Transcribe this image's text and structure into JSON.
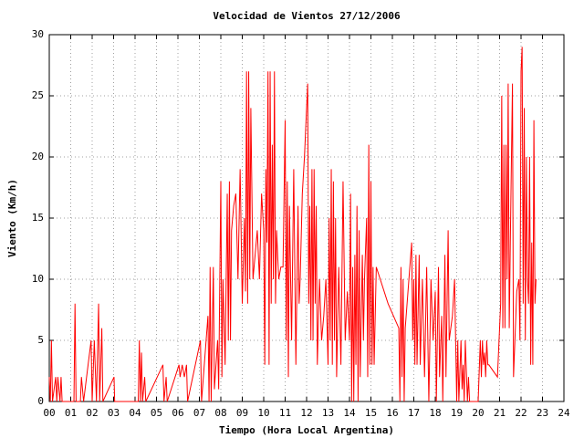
{
  "chart_data": {
    "type": "line",
    "title": "Velocidad de Vientos 27/12/2006",
    "xlabel": "Tiempo (Hora Local Argentina)",
    "ylabel": "Viento (Km/h)",
    "xlim": [
      0,
      24
    ],
    "ylim": [
      0,
      30
    ],
    "xticks": [
      {
        "value": 0,
        "label": "00"
      },
      {
        "value": 1,
        "label": "01"
      },
      {
        "value": 2,
        "label": "02"
      },
      {
        "value": 3,
        "label": "03"
      },
      {
        "value": 4,
        "label": "04"
      },
      {
        "value": 5,
        "label": "05"
      },
      {
        "value": 6,
        "label": "06"
      },
      {
        "value": 7,
        "label": "07"
      },
      {
        "value": 8,
        "label": "08"
      },
      {
        "value": 9,
        "label": "09"
      },
      10,
      11,
      12,
      13,
      14,
      15,
      16,
      17,
      18,
      19,
      20,
      21,
      22,
      23,
      24
    ],
    "yticks": [
      0,
      5,
      10,
      15,
      20,
      25,
      30
    ],
    "grid": true,
    "x": [
      0,
      0.05,
      0.1,
      0.15,
      0.3,
      0.35,
      0.4,
      0.5,
      0.55,
      0.6,
      1.15,
      1.2,
      1.25,
      1.45,
      1.5,
      1.6,
      1.95,
      2.0,
      2.1,
      2.2,
      2.3,
      2.35,
      2.45,
      2.5,
      3.02,
      3.05,
      4.15,
      4.2,
      4.25,
      4.3,
      4.35,
      4.45,
      4.5,
      5.3,
      5.35,
      5.45,
      5.5,
      6.05,
      6.1,
      6.2,
      6.3,
      6.4,
      6.45,
      7.05,
      7.1,
      7.4,
      7.45,
      7.5,
      7.55,
      7.65,
      7.7,
      7.85,
      7.9,
      8.0,
      8.05,
      8.1,
      8.2,
      8.3,
      8.35,
      8.4,
      8.45,
      8.5,
      8.6,
      8.7,
      8.8,
      8.9,
      9.0,
      9.1,
      9.15,
      9.2,
      9.25,
      9.3,
      9.35,
      9.4,
      9.5,
      9.6,
      9.7,
      9.8,
      9.9,
      10.0,
      10.05,
      10.1,
      10.15,
      10.2,
      10.25,
      10.3,
      10.35,
      10.4,
      10.45,
      10.5,
      10.55,
      10.6,
      10.7,
      10.8,
      10.9,
      11.0,
      11.05,
      11.1,
      11.15,
      11.2,
      11.3,
      11.4,
      11.5,
      11.6,
      11.65,
      11.7,
      11.8,
      11.9,
      12.0,
      12.05,
      12.1,
      12.15,
      12.2,
      12.25,
      12.3,
      12.35,
      12.4,
      12.45,
      12.5,
      12.6,
      12.7,
      12.8,
      12.9,
      13.0,
      13.05,
      13.1,
      13.15,
      13.2,
      13.25,
      13.3,
      13.35,
      13.4,
      13.5,
      13.6,
      13.7,
      13.8,
      13.9,
      14.0,
      14.05,
      14.1,
      14.15,
      14.2,
      14.25,
      14.3,
      14.35,
      14.4,
      14.45,
      14.5,
      14.6,
      14.65,
      14.7,
      14.8,
      14.85,
      14.9,
      14.95,
      15.0,
      15.05,
      15.1,
      15.15,
      15.25,
      15.8,
      16.3,
      16.35,
      16.4,
      16.45,
      16.5,
      16.55,
      16.6,
      16.9,
      16.95,
      17.0,
      17.05,
      17.1,
      17.15,
      17.25,
      17.3,
      17.4,
      17.5,
      17.6,
      17.7,
      17.8,
      17.9,
      18.0,
      18.05,
      18.15,
      18.2,
      18.3,
      18.35,
      18.45,
      18.5,
      18.6,
      18.65,
      18.8,
      18.9,
      19.0,
      19.05,
      19.1,
      19.2,
      19.25,
      19.3,
      19.35,
      19.4,
      19.5,
      19.55,
      19.6,
      20.0,
      20.1,
      20.15,
      20.2,
      20.25,
      20.3,
      20.35,
      20.4,
      20.45,
      20.5,
      20.9,
      21.05,
      21.1,
      21.15,
      21.2,
      21.25,
      21.3,
      21.35,
      21.4,
      21.45,
      21.5,
      21.6,
      21.65,
      21.8,
      21.9,
      21.95,
      22.0,
      22.05,
      22.1,
      22.15,
      22.2,
      22.25,
      22.3,
      22.35,
      22.4,
      22.45,
      22.5,
      22.55,
      22.6,
      22.65,
      22.7
    ],
    "series": [
      {
        "color": "#ff0000",
        "values": [
          2,
          0,
          5,
          0,
          2,
          0,
          2,
          0,
          2,
          0,
          0,
          8,
          0,
          0,
          2,
          0,
          5,
          0,
          5,
          0,
          8,
          0,
          6,
          0,
          2,
          0,
          0,
          5,
          0,
          4,
          0,
          2,
          0,
          3,
          0,
          2,
          0,
          3,
          2,
          3,
          2,
          3,
          0,
          5,
          0,
          7,
          0,
          11,
          0,
          11,
          1,
          5,
          1,
          18,
          2,
          10,
          3,
          17,
          5,
          18,
          5,
          14,
          16,
          17,
          10,
          19,
          8,
          15,
          9,
          27,
          8,
          27,
          10,
          24,
          10,
          12,
          14,
          10,
          17,
          14,
          3,
          19,
          13,
          27,
          3,
          27,
          8,
          21,
          10,
          27,
          8,
          14,
          10,
          11,
          11,
          23,
          5,
          18,
          2,
          16,
          5,
          19,
          3,
          16,
          8,
          10,
          17,
          20,
          24,
          26,
          8,
          16,
          5,
          19,
          5,
          19,
          8,
          16,
          3,
          10,
          5,
          7,
          10,
          3,
          15,
          5,
          19,
          3,
          18,
          5,
          15,
          2,
          11,
          3,
          18,
          5,
          9,
          5,
          17,
          0,
          11,
          0,
          12,
          3,
          16,
          0,
          14,
          2,
          12,
          5,
          10,
          15,
          2,
          21,
          3,
          18,
          3,
          11,
          3,
          11,
          8,
          6,
          0,
          11,
          2,
          10,
          0,
          6,
          13,
          5,
          10,
          3,
          12,
          3,
          12,
          3,
          10,
          2,
          11,
          0,
          10,
          5,
          9,
          0,
          11,
          2,
          7,
          0,
          12,
          2,
          14,
          5,
          7,
          10,
          0,
          5,
          0,
          5,
          1,
          3,
          0,
          5,
          0,
          2,
          0,
          0,
          5,
          2,
          5,
          3,
          4,
          2,
          5,
          3,
          3,
          2,
          8,
          25,
          6,
          21,
          6,
          21,
          10,
          26,
          6,
          13,
          26,
          2,
          9,
          10,
          5,
          27,
          29,
          8,
          24,
          5,
          20,
          10,
          8,
          20,
          3,
          13,
          3,
          23,
          8,
          10
        ]
      }
    ]
  }
}
